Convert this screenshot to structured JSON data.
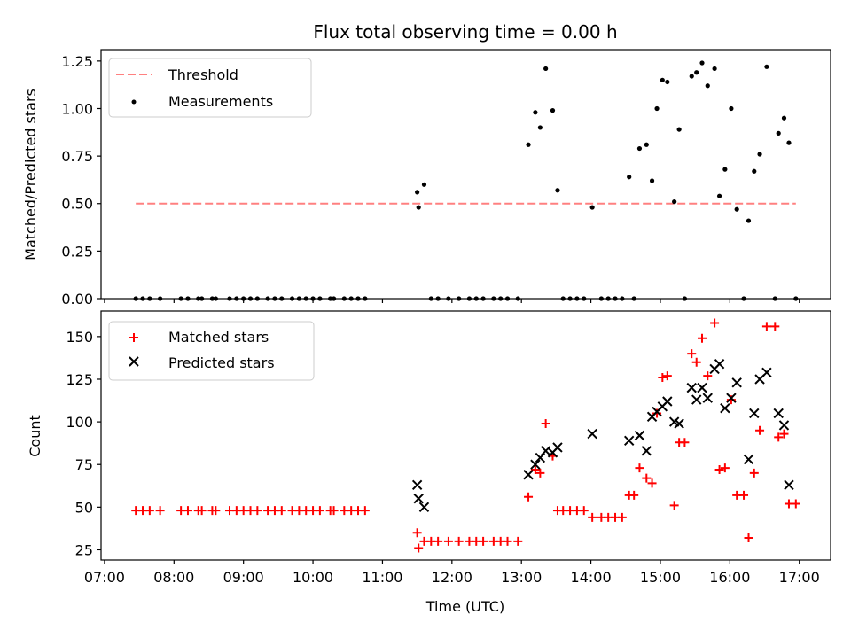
{
  "chart_data": {
    "type": "scatter",
    "title": "Flux total observing time = 0.00 h",
    "xlabel": "Time (UTC)",
    "x_ticks": [
      "07:00",
      "08:00",
      "09:00",
      "10:00",
      "11:00",
      "12:00",
      "13:00",
      "14:00",
      "15:00",
      "16:00",
      "17:00"
    ],
    "xlim": [
      6.95,
      17.45
    ],
    "panels": [
      {
        "id": "ratio",
        "ylabel": "Matched/Predicted stars",
        "ylim": [
          0,
          1.31
        ],
        "y_ticks": [
          "0.00",
          "0.25",
          "0.50",
          "0.75",
          "1.00",
          "1.25"
        ],
        "y_tick_values": [
          0,
          0.25,
          0.5,
          0.75,
          1.0,
          1.25
        ],
        "legend_position": "upper-left",
        "threshold": {
          "name": "Threshold",
          "value": 0.5,
          "x_range": [
            7.45,
            16.95
          ],
          "color": "#ff8080"
        },
        "series": [
          {
            "name": "Measurements",
            "marker": "dot",
            "color": "#000000",
            "points": [
              [
                7.45,
                0
              ],
              [
                7.55,
                0
              ],
              [
                7.65,
                0
              ],
              [
                7.8,
                0
              ],
              [
                8.1,
                0
              ],
              [
                8.2,
                0
              ],
              [
                8.35,
                0
              ],
              [
                8.4,
                0
              ],
              [
                8.55,
                0
              ],
              [
                8.6,
                0
              ],
              [
                8.8,
                0
              ],
              [
                8.9,
                0
              ],
              [
                9.0,
                0
              ],
              [
                9.1,
                0
              ],
              [
                9.2,
                0
              ],
              [
                9.35,
                0
              ],
              [
                9.45,
                0
              ],
              [
                9.55,
                0
              ],
              [
                9.7,
                0
              ],
              [
                9.8,
                0
              ],
              [
                9.9,
                0
              ],
              [
                10.0,
                0
              ],
              [
                10.1,
                0
              ],
              [
                10.25,
                0
              ],
              [
                10.3,
                0
              ],
              [
                10.45,
                0
              ],
              [
                10.55,
                0
              ],
              [
                10.65,
                0
              ],
              [
                10.75,
                0
              ],
              [
                11.5,
                0.56
              ],
              [
                11.52,
                0.48
              ],
              [
                11.6,
                0.6
              ],
              [
                11.7,
                0
              ],
              [
                11.8,
                0
              ],
              [
                11.95,
                0
              ],
              [
                12.1,
                0
              ],
              [
                12.25,
                0
              ],
              [
                12.35,
                0
              ],
              [
                12.45,
                0
              ],
              [
                12.6,
                0
              ],
              [
                12.7,
                0
              ],
              [
                12.8,
                0
              ],
              [
                12.95,
                0
              ],
              [
                13.1,
                0.81
              ],
              [
                13.2,
                0.98
              ],
              [
                13.27,
                0.9
              ],
              [
                13.35,
                1.21
              ],
              [
                13.45,
                0.99
              ],
              [
                13.52,
                0.57
              ],
              [
                13.6,
                0
              ],
              [
                13.7,
                0
              ],
              [
                13.8,
                0
              ],
              [
                13.9,
                0
              ],
              [
                14.02,
                0.48
              ],
              [
                14.15,
                0
              ],
              [
                14.25,
                0
              ],
              [
                14.35,
                0
              ],
              [
                14.45,
                0
              ],
              [
                14.55,
                0.64
              ],
              [
                14.62,
                0
              ],
              [
                14.7,
                0.79
              ],
              [
                14.8,
                0.81
              ],
              [
                14.88,
                0.62
              ],
              [
                14.95,
                1.0
              ],
              [
                15.03,
                1.15
              ],
              [
                15.1,
                1.14
              ],
              [
                15.2,
                0.51
              ],
              [
                15.27,
                0.89
              ],
              [
                15.35,
                0
              ],
              [
                15.45,
                1.17
              ],
              [
                15.52,
                1.19
              ],
              [
                15.6,
                1.24
              ],
              [
                15.68,
                1.12
              ],
              [
                15.78,
                1.21
              ],
              [
                15.85,
                0.54
              ],
              [
                15.93,
                0.68
              ],
              [
                16.02,
                1.0
              ],
              [
                16.1,
                0.47
              ],
              [
                16.2,
                0
              ],
              [
                16.27,
                0.41
              ],
              [
                16.35,
                0.67
              ],
              [
                16.43,
                0.76
              ],
              [
                16.53,
                1.22
              ],
              [
                16.65,
                0
              ],
              [
                16.7,
                0.87
              ],
              [
                16.78,
                0.95
              ],
              [
                16.85,
                0.82
              ],
              [
                16.95,
                0
              ]
            ]
          }
        ]
      },
      {
        "id": "count",
        "ylabel": "Count",
        "ylim": [
          19,
          165
        ],
        "y_ticks": [
          "25",
          "50",
          "75",
          "100",
          "125",
          "150"
        ],
        "y_tick_values": [
          25,
          50,
          75,
          100,
          125,
          150
        ],
        "legend_position": "upper-left",
        "series": [
          {
            "name": "Matched stars",
            "marker": "plus",
            "color": "#ff0000",
            "points": [
              [
                7.45,
                48
              ],
              [
                7.55,
                48
              ],
              [
                7.65,
                48
              ],
              [
                7.8,
                48
              ],
              [
                8.1,
                48
              ],
              [
                8.2,
                48
              ],
              [
                8.35,
                48
              ],
              [
                8.4,
                48
              ],
              [
                8.55,
                48
              ],
              [
                8.6,
                48
              ],
              [
                8.8,
                48
              ],
              [
                8.9,
                48
              ],
              [
                9.0,
                48
              ],
              [
                9.1,
                48
              ],
              [
                9.2,
                48
              ],
              [
                9.35,
                48
              ],
              [
                9.45,
                48
              ],
              [
                9.55,
                48
              ],
              [
                9.7,
                48
              ],
              [
                9.8,
                48
              ],
              [
                9.9,
                48
              ],
              [
                10.0,
                48
              ],
              [
                10.1,
                48
              ],
              [
                10.25,
                48
              ],
              [
                10.3,
                48
              ],
              [
                10.45,
                48
              ],
              [
                10.55,
                48
              ],
              [
                10.65,
                48
              ],
              [
                10.75,
                48
              ],
              [
                11.5,
                35
              ],
              [
                11.52,
                26
              ],
              [
                11.6,
                30
              ],
              [
                11.7,
                30
              ],
              [
                11.8,
                30
              ],
              [
                11.95,
                30
              ],
              [
                12.1,
                30
              ],
              [
                12.25,
                30
              ],
              [
                12.35,
                30
              ],
              [
                12.45,
                30
              ],
              [
                12.6,
                30
              ],
              [
                12.7,
                30
              ],
              [
                12.8,
                30
              ],
              [
                12.95,
                30
              ],
              [
                13.1,
                56
              ],
              [
                13.2,
                72
              ],
              [
                13.27,
                70
              ],
              [
                13.35,
                99
              ],
              [
                13.45,
                80
              ],
              [
                13.52,
                48
              ],
              [
                13.6,
                48
              ],
              [
                13.7,
                48
              ],
              [
                13.8,
                48
              ],
              [
                13.9,
                48
              ],
              [
                14.02,
                44
              ],
              [
                14.15,
                44
              ],
              [
                14.25,
                44
              ],
              [
                14.35,
                44
              ],
              [
                14.45,
                44
              ],
              [
                14.55,
                57
              ],
              [
                14.62,
                57
              ],
              [
                14.7,
                73
              ],
              [
                14.8,
                67
              ],
              [
                14.88,
                64
              ],
              [
                14.95,
                105
              ],
              [
                15.03,
                126
              ],
              [
                15.1,
                127
              ],
              [
                15.2,
                51
              ],
              [
                15.27,
                88
              ],
              [
                15.35,
                88
              ],
              [
                15.45,
                140
              ],
              [
                15.52,
                135
              ],
              [
                15.6,
                149
              ],
              [
                15.68,
                127
              ],
              [
                15.78,
                158
              ],
              [
                15.85,
                72
              ],
              [
                15.93,
                73
              ],
              [
                16.02,
                113
              ],
              [
                16.1,
                57
              ],
              [
                16.2,
                57
              ],
              [
                16.27,
                32
              ],
              [
                16.35,
                70
              ],
              [
                16.43,
                95
              ],
              [
                16.53,
                156
              ],
              [
                16.65,
                156
              ],
              [
                16.7,
                91
              ],
              [
                16.78,
                93
              ],
              [
                16.85,
                52
              ],
              [
                16.95,
                52
              ]
            ]
          },
          {
            "name": "Predicted stars",
            "marker": "x",
            "color": "#000000",
            "points": [
              [
                11.5,
                63
              ],
              [
                11.52,
                55
              ],
              [
                11.6,
                50
              ],
              [
                13.1,
                69
              ],
              [
                13.2,
                75
              ],
              [
                13.27,
                79
              ],
              [
                13.35,
                83
              ],
              [
                13.45,
                82
              ],
              [
                13.52,
                85
              ],
              [
                14.02,
                93
              ],
              [
                14.55,
                89
              ],
              [
                14.7,
                92
              ],
              [
                14.8,
                83
              ],
              [
                14.88,
                103
              ],
              [
                14.95,
                106
              ],
              [
                15.03,
                109
              ],
              [
                15.1,
                112
              ],
              [
                15.2,
                100
              ],
              [
                15.27,
                99
              ],
              [
                15.45,
                120
              ],
              [
                15.52,
                113
              ],
              [
                15.6,
                120
              ],
              [
                15.68,
                114
              ],
              [
                15.78,
                131
              ],
              [
                15.85,
                134
              ],
              [
                15.93,
                108
              ],
              [
                16.02,
                114
              ],
              [
                16.1,
                123
              ],
              [
                16.27,
                78
              ],
              [
                16.35,
                105
              ],
              [
                16.43,
                125
              ],
              [
                16.53,
                129
              ],
              [
                16.7,
                105
              ],
              [
                16.78,
                98
              ],
              [
                16.85,
                63
              ]
            ]
          }
        ]
      }
    ]
  }
}
